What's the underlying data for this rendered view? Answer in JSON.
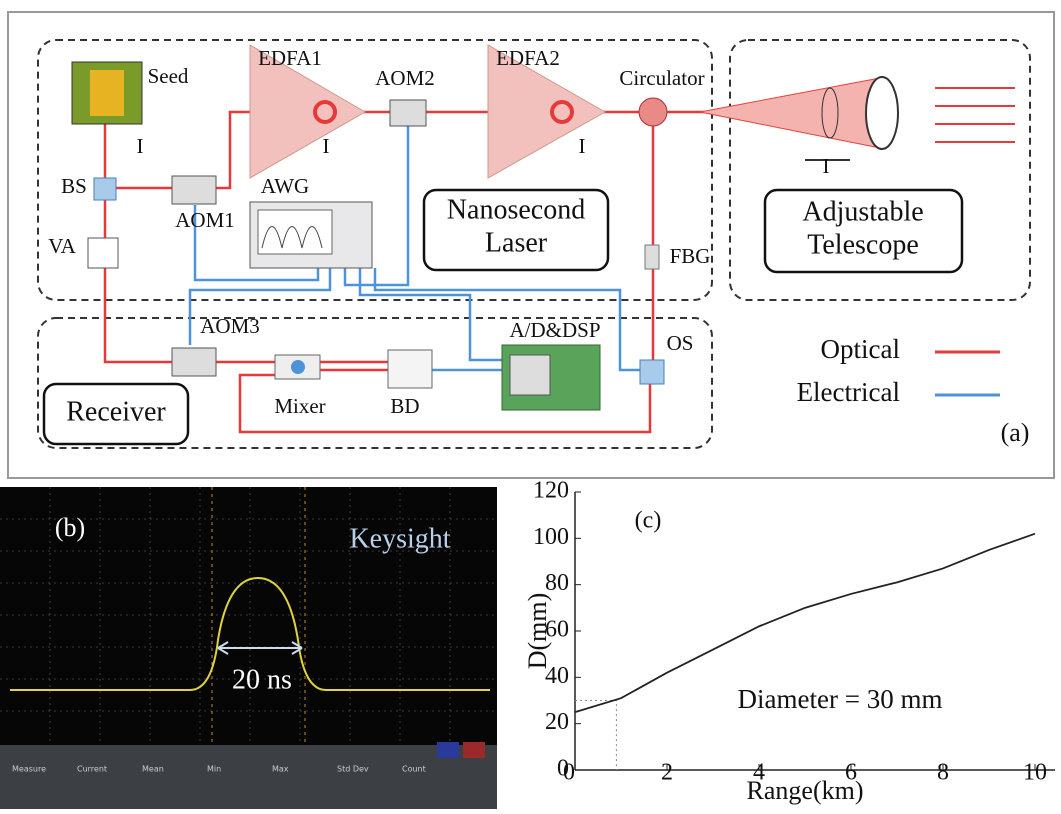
{
  "panel_a": {
    "label": "(a)",
    "components": [
      "Seed",
      "EDFA1",
      "AOM2",
      "EDFA2",
      "Circulator",
      "BS",
      "AOM1",
      "AWG",
      "VA",
      "FBG",
      "AOM3",
      "A/D&DSP",
      "OS",
      "Mixer",
      "BD",
      "I",
      "I",
      "I",
      "I"
    ],
    "groups": [
      {
        "lines": [
          "Nanosecond",
          "Laser"
        ]
      },
      {
        "lines": [
          "Adjustable",
          "Telescope"
        ]
      },
      {
        "lines": [
          "Receiver"
        ]
      }
    ],
    "legend": [
      {
        "name": "Optical",
        "color": "#e8393a"
      },
      {
        "name": "Electrical",
        "color": "#4d93d9"
      }
    ]
  },
  "panel_b": {
    "label": "(b)",
    "brand": "Keysight",
    "annotation": "20 ns",
    "measure_headers": [
      "Measure",
      "Current",
      "Mean",
      "Min",
      "Max",
      "Std Dev",
      "Count"
    ]
  },
  "chart_data": {
    "type": "line",
    "label": "(c)",
    "xlabel": "Range(km)",
    "ylabel": "D(mm)",
    "annotation": "Diameter = 30 mm",
    "x": [
      0,
      1,
      2,
      3,
      4,
      5,
      6,
      7,
      8,
      9,
      10
    ],
    "values": [
      25,
      31,
      42,
      52,
      62,
      70,
      76,
      81,
      87,
      95,
      102
    ],
    "color": "#222222",
    "reference_point": {
      "x": 0.9,
      "y": 30
    },
    "xlim": [
      0,
      10
    ],
    "ylim": [
      0,
      120
    ],
    "xticks": [
      0,
      2,
      4,
      6,
      8,
      10
    ],
    "yticks": [
      0,
      20,
      40,
      60,
      80,
      100,
      120
    ]
  }
}
